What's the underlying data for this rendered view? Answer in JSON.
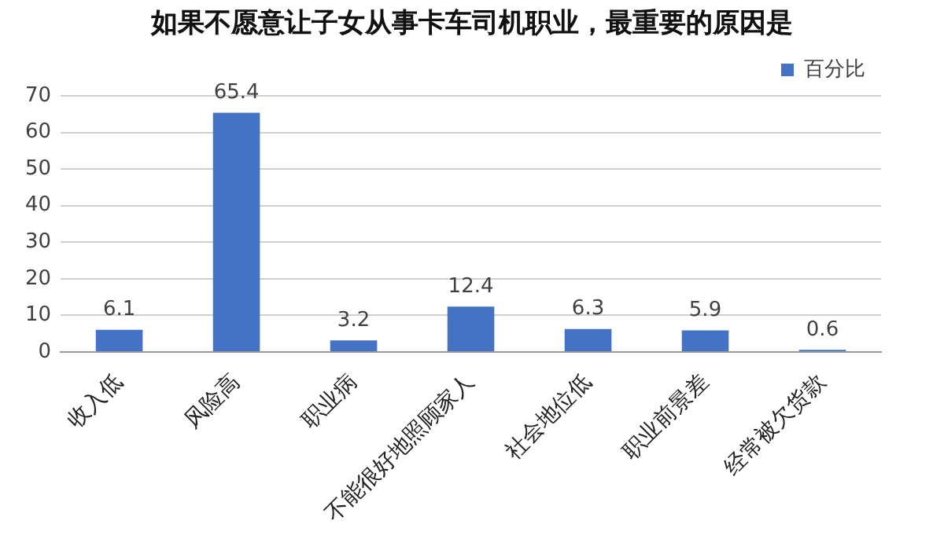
{
  "chart_data": {
    "type": "bar",
    "title": "如果不愿意让子女从事卡车司机职业，最重要的原因是",
    "categories": [
      "收入低",
      "风险高",
      "职业病",
      "不能很好地照顾家人",
      "社会地位低",
      "职业前景差",
      "经常被欠货款"
    ],
    "series": [
      {
        "name": "百分比",
        "color": "#4472c4",
        "values": [
          6.1,
          65.4,
          3.2,
          12.4,
          6.3,
          5.9,
          0.6
        ]
      }
    ],
    "ylim": [
      0,
      70
    ],
    "yticks": [
      0,
      10,
      20,
      30,
      40,
      50,
      60,
      70
    ],
    "grid": "y",
    "legend": "top right",
    "data_labels": true
  }
}
